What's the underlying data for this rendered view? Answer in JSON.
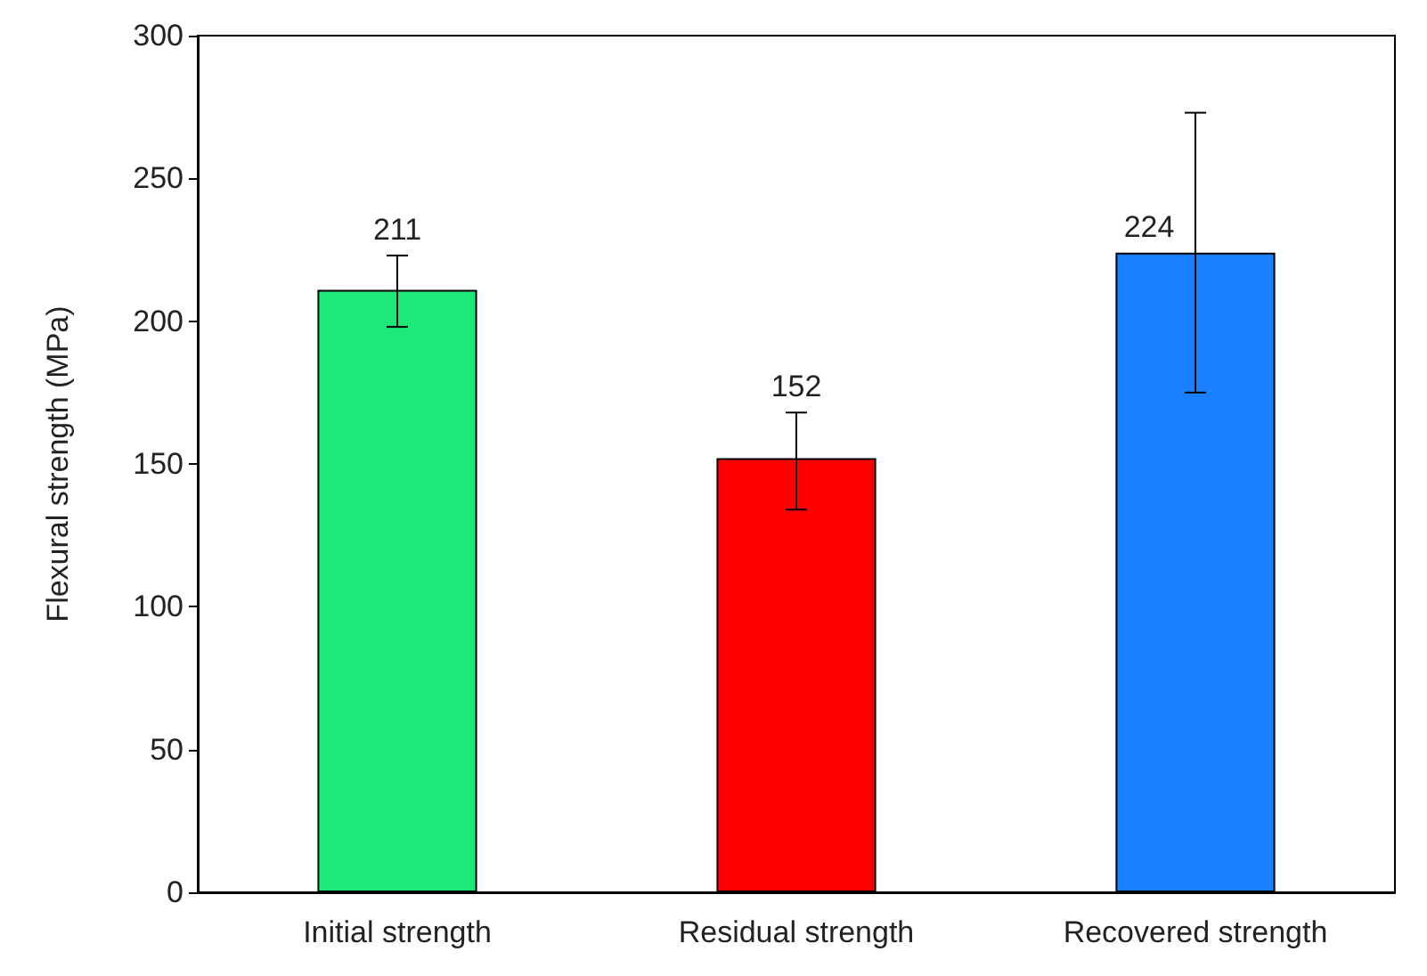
{
  "chart_data": {
    "type": "bar",
    "ylabel": "Flexural strength (MPa)",
    "categories": [
      "Initial strength",
      "Residual strength",
      "Recovered strength"
    ],
    "values": [
      211,
      152,
      224
    ],
    "colors": [
      "#1de87a",
      "#fe0000",
      "#1a80ff"
    ],
    "errors": [
      [
        198,
        223
      ],
      [
        134,
        168
      ],
      [
        175,
        273
      ]
    ],
    "data_labels": true,
    "ylim": [
      0,
      300
    ],
    "yticks": [
      0,
      50,
      100,
      150,
      200,
      250,
      300
    ],
    "grid": false
  }
}
